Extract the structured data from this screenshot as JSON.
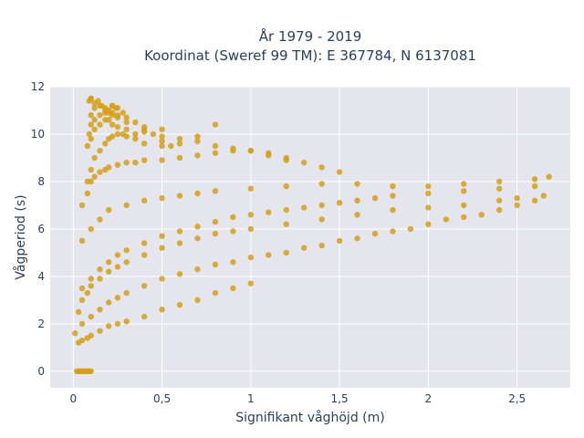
{
  "chart_data": {
    "type": "scatter",
    "title_line1": "År 1979 - 2019",
    "title_line2": "Koordinat (Sweref 99 TM): E 367784, N 6137081",
    "xlabel": "Signifikant våghöjd (m)",
    "ylabel": "Vågperiod (s)",
    "xlim": [
      -0.13,
      2.8
    ],
    "ylim": [
      -0.7,
      12
    ],
    "xticks": [
      0,
      0.5,
      1,
      1.5,
      2,
      2.5
    ],
    "xtick_labels": [
      "0",
      "0,5",
      "1",
      "1,5",
      "2",
      "2,5"
    ],
    "yticks": [
      0,
      2,
      4,
      6,
      8,
      10,
      12
    ],
    "ytick_labels": [
      "0",
      "2",
      "4",
      "6",
      "8",
      "10",
      "12"
    ],
    "grid": true,
    "marker_color": "#d4a017",
    "plot_bg": "#e5e5ee",
    "series": [
      {
        "x": [
          0.02,
          0.03,
          0.04,
          0.05,
          0.06,
          0.07,
          0.08,
          0.09,
          0.1,
          0.01,
          0.03,
          0.05,
          0.08,
          0.1,
          0.15,
          0.2,
          0.25,
          0.3,
          0.4,
          0.5,
          0.6,
          0.7,
          0.8,
          0.9,
          1.0,
          0.05,
          0.1,
          0.15,
          0.2,
          0.25,
          0.3,
          0.4,
          0.5,
          0.6,
          0.7,
          0.8,
          0.9,
          1.0,
          1.1,
          1.2,
          1.3,
          1.4,
          1.5,
          1.6,
          1.7,
          1.8,
          1.9,
          2.0,
          2.1,
          2.2,
          2.3,
          2.4,
          2.5,
          2.6,
          2.65,
          0.03,
          0.05,
          0.08,
          0.1,
          0.15,
          0.2,
          0.25,
          0.3,
          0.4,
          0.5,
          0.6,
          0.7,
          0.8,
          0.9,
          1.0,
          1.2,
          1.4,
          1.6,
          1.8,
          2.0,
          2.2,
          2.4,
          2.5,
          0.05,
          0.1,
          0.15,
          0.2,
          0.25,
          0.3,
          0.4,
          0.5,
          0.6,
          0.7,
          0.8,
          0.9,
          1.0,
          1.1,
          1.2,
          1.3,
          1.4,
          1.5,
          1.6,
          1.7,
          1.8,
          2.0,
          2.2,
          2.4,
          2.6,
          0.05,
          0.1,
          0.15,
          0.2,
          0.3,
          0.4,
          0.5,
          0.6,
          0.7,
          0.8,
          1.0,
          1.2,
          1.4,
          1.6,
          1.8,
          2.0,
          2.2,
          2.4,
          2.6,
          2.68,
          0.05,
          0.08,
          0.1,
          0.12,
          0.15,
          0.18,
          0.2,
          0.25,
          0.3,
          0.35,
          0.4,
          0.5,
          0.6,
          0.7,
          0.8,
          0.9,
          1.0,
          1.1,
          1.2,
          1.3,
          1.4,
          1.5,
          0.08,
          0.1,
          0.12,
          0.15,
          0.18,
          0.2,
          0.22,
          0.25,
          0.28,
          0.3,
          0.35,
          0.4,
          0.5,
          0.6,
          0.7,
          0.8,
          0.9,
          1.0,
          1.1,
          1.2,
          0.08,
          0.1,
          0.12,
          0.15,
          0.18,
          0.2,
          0.22,
          0.25,
          0.3,
          0.35,
          0.4,
          0.5,
          0.6,
          0.7,
          0.8,
          0.09,
          0.1,
          0.12,
          0.15,
          0.18,
          0.2,
          0.22,
          0.25,
          0.28,
          0.3,
          0.35,
          0.4,
          0.45,
          0.5,
          0.55,
          0.1,
          0.12,
          0.15,
          0.18,
          0.2,
          0.22,
          0.25,
          0.3,
          0.4,
          0.5,
          0.1,
          0.12,
          0.14,
          0.16,
          0.18,
          0.22,
          0.25,
          0.09,
          0.1,
          0.22,
          0.24
        ],
        "y": [
          0,
          0,
          0,
          0,
          0,
          0,
          0,
          0,
          0,
          1.6,
          1.2,
          1.3,
          1.4,
          1.5,
          1.7,
          1.9,
          2.0,
          2.1,
          2.3,
          2.6,
          2.8,
          3.0,
          3.3,
          3.5,
          3.7,
          2.0,
          2.3,
          2.6,
          2.9,
          3.1,
          3.3,
          3.6,
          3.9,
          4.1,
          4.3,
          4.5,
          4.6,
          4.8,
          4.9,
          5.0,
          5.2,
          5.3,
          5.5,
          5.6,
          5.8,
          5.9,
          6.0,
          6.2,
          6.4,
          6.5,
          6.6,
          6.8,
          7.0,
          7.2,
          7.4,
          2.5,
          3.0,
          3.3,
          3.6,
          3.9,
          4.2,
          4.4,
          4.6,
          4.9,
          5.2,
          5.4,
          5.6,
          5.8,
          5.9,
          6.0,
          6.2,
          6.4,
          6.6,
          6.8,
          6.9,
          7.0,
          7.2,
          7.3,
          3.5,
          3.9,
          4.3,
          4.6,
          4.9,
          5.1,
          5.4,
          5.7,
          5.9,
          6.1,
          6.3,
          6.5,
          6.6,
          6.7,
          6.8,
          6.9,
          7.0,
          7.1,
          7.2,
          7.3,
          7.4,
          7.5,
          7.6,
          7.7,
          7.8,
          5.5,
          6.0,
          6.4,
          6.8,
          7.0,
          7.2,
          7.3,
          7.4,
          7.5,
          7.6,
          7.7,
          7.8,
          7.9,
          7.9,
          7.8,
          7.8,
          7.9,
          8.0,
          8.1,
          8.2,
          7.0,
          7.5,
          8.0,
          8.2,
          8.4,
          8.5,
          8.6,
          8.7,
          8.8,
          8.8,
          8.9,
          8.9,
          9.0,
          9.1,
          9.2,
          9.3,
          9.3,
          9.2,
          9.0,
          8.8,
          8.6,
          8.4,
          8.0,
          8.5,
          9.0,
          9.3,
          9.6,
          9.8,
          9.9,
          10.0,
          10.0,
          9.9,
          9.8,
          9.6,
          9.5,
          9.6,
          9.7,
          9.5,
          9.4,
          9.3,
          9.1,
          8.9,
          9.5,
          9.8,
          10.2,
          10.4,
          10.6,
          10.6,
          10.4,
          10.3,
          10.2,
          10.0,
          10.1,
          9.9,
          9.8,
          9.9,
          10.4,
          10.0,
          10.4,
          10.6,
          10.8,
          11.0,
          10.9,
          11.2,
          11.1,
          10.9,
          10.7,
          10.5,
          10.2,
          10.0,
          9.7,
          9.5,
          10.8,
          11.1,
          11.2,
          10.9,
          11.0,
          10.8,
          10.7,
          10.5,
          10.3,
          10.2,
          11.5,
          11.3,
          11.4,
          11.2,
          11.1,
          10.9,
          10.8,
          11.4,
          11.5,
          11.2,
          11.1
        ]
      }
    ]
  }
}
